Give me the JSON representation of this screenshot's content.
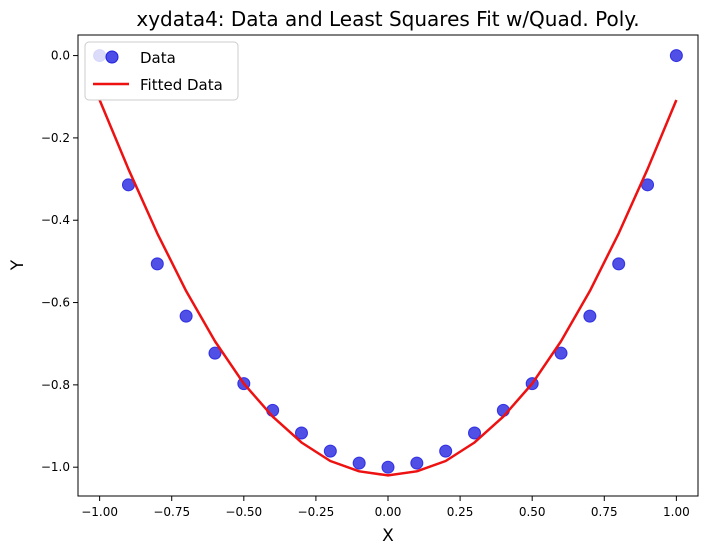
{
  "chart_data": {
    "type": "scatter",
    "title": "xydata4: Data and Least Squares Fit w/Quad. Poly.",
    "xlabel": "X",
    "ylabel": "Y",
    "xlim": [
      -1.075,
      1.075
    ],
    "ylim": [
      -1.07,
      0.05
    ],
    "xticks": [
      -1.0,
      -0.75,
      -0.5,
      -0.25,
      0.0,
      0.25,
      0.5,
      0.75,
      1.0
    ],
    "xtick_labels": [
      "−1.00",
      "−0.75",
      "−0.50",
      "−0.25",
      "0.00",
      "0.25",
      "0.50",
      "0.75",
      "1.00"
    ],
    "yticks": [
      0.0,
      -0.2,
      -0.4,
      -0.6,
      -0.8,
      -1.0
    ],
    "ytick_labels": [
      "0.0",
      "−0.2",
      "−0.4",
      "−0.6",
      "−0.8",
      "−1.0"
    ],
    "grid": false,
    "legend_position": "upper-left",
    "series": [
      {
        "name": "Data",
        "kind": "scatter",
        "color": "#1f1fe0",
        "x": [
          -1.0,
          -0.9,
          -0.8,
          -0.7,
          -0.6,
          -0.5,
          -0.4,
          -0.3,
          -0.2,
          -0.1,
          0.0,
          0.1,
          0.2,
          0.3,
          0.4,
          0.5,
          0.6,
          0.7,
          0.8,
          0.9,
          1.0
        ],
        "y": [
          0.0,
          -0.314,
          -0.506,
          -0.633,
          -0.723,
          -0.797,
          -0.862,
          -0.917,
          -0.961,
          -0.99,
          -1.0,
          -0.99,
          -0.961,
          -0.917,
          -0.862,
          -0.797,
          -0.723,
          -0.633,
          -0.506,
          -0.314,
          0.0
        ]
      },
      {
        "name": "Fitted Data",
        "kind": "line",
        "color": "#ee1111",
        "x": [
          -1.0,
          -0.9,
          -0.8,
          -0.7,
          -0.6,
          -0.5,
          -0.4,
          -0.3,
          -0.2,
          -0.1,
          0.0,
          0.1,
          0.2,
          0.3,
          0.4,
          0.5,
          0.6,
          0.7,
          0.8,
          0.9,
          1.0
        ],
        "y": [
          -0.108,
          -0.276,
          -0.432,
          -0.572,
          -0.694,
          -0.797,
          -0.877,
          -0.94,
          -0.985,
          -1.01,
          -1.02,
          -1.01,
          -0.985,
          -0.94,
          -0.877,
          -0.797,
          -0.694,
          -0.572,
          -0.432,
          -0.276,
          -0.108
        ]
      }
    ]
  }
}
